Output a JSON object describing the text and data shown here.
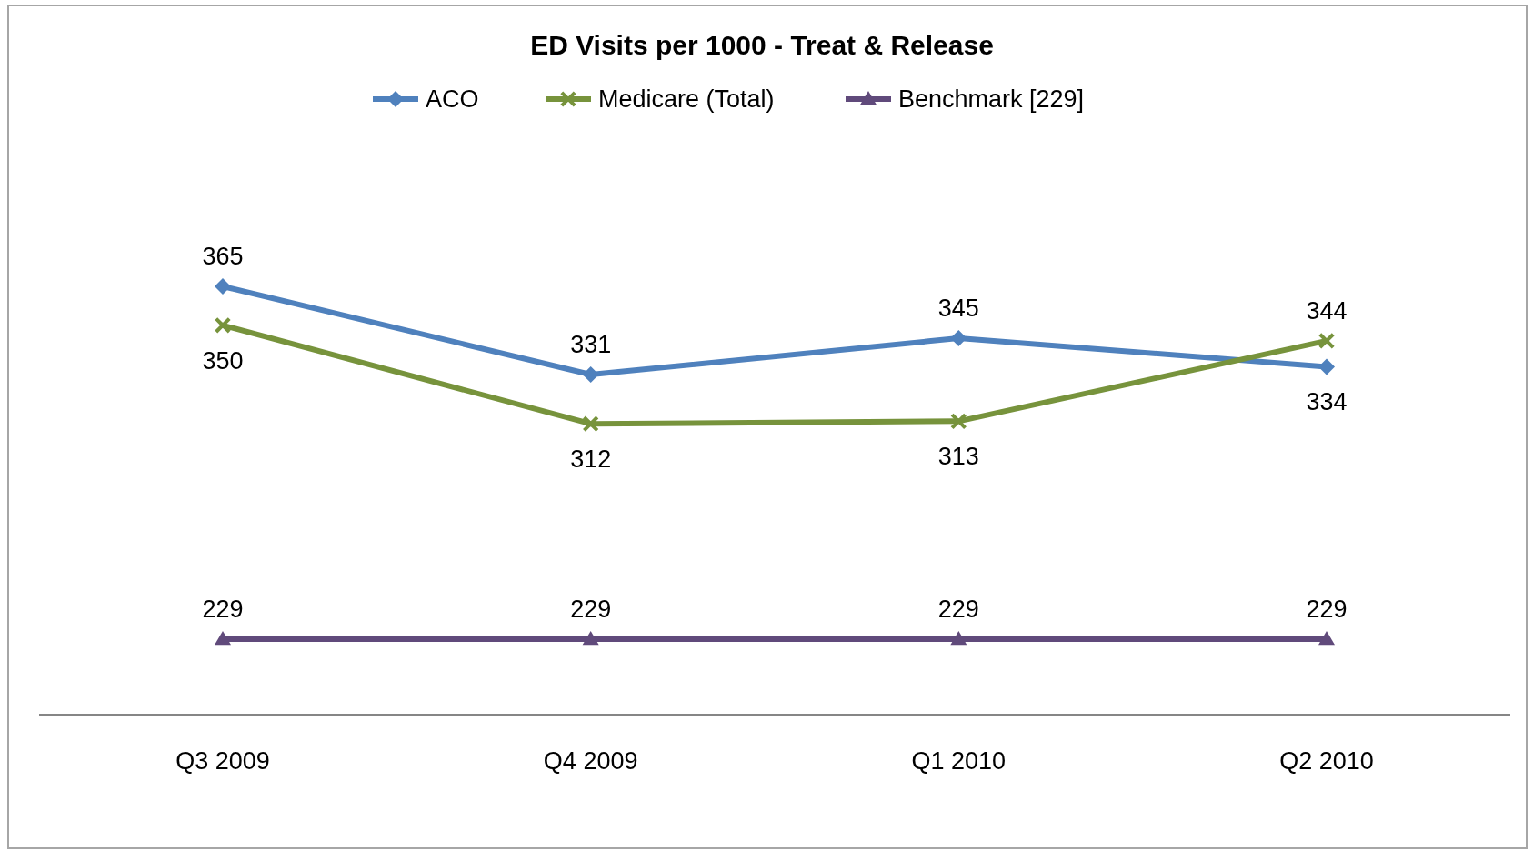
{
  "chart_data": {
    "type": "line",
    "title": "ED Visits per 1000 - Treat & Release",
    "categories": [
      "Q3 2009",
      "Q4 2009",
      "Q1 2010",
      "Q2 2010"
    ],
    "series": [
      {
        "name": "ACO",
        "color": "#4f81bd",
        "values": [
          365,
          331,
          345,
          334
        ],
        "marker": "diamond"
      },
      {
        "name": "Medicare (Total)",
        "color": "#77933c",
        "values": [
          350,
          312,
          313,
          344
        ],
        "marker": "cross"
      },
      {
        "name": "Benchmark [229]",
        "color": "#604a7b",
        "values": [
          229,
          229,
          229,
          229
        ],
        "marker": "triangle"
      }
    ],
    "data_labels": true,
    "legend": "top",
    "line_style": "solid"
  }
}
